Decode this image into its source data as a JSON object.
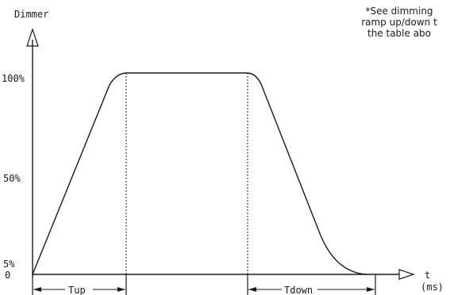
{
  "y_axis_label": "Dimmer",
  "x_axis_label": "t",
  "x_axis_unit": "(ms)",
  "y_levels": {
    "full": "100%",
    "half": "50%",
    "low": "5%",
    "zero": "0"
  },
  "intervals": {
    "ramp_up": "Tup",
    "ramp_down": "Tdown"
  },
  "note_lines": [
    "*See dimming",
    "ramp up/down t",
    "the table abo"
  ],
  "colors": {
    "line": "#1a1a1a",
    "background": "#ffffff"
  }
}
